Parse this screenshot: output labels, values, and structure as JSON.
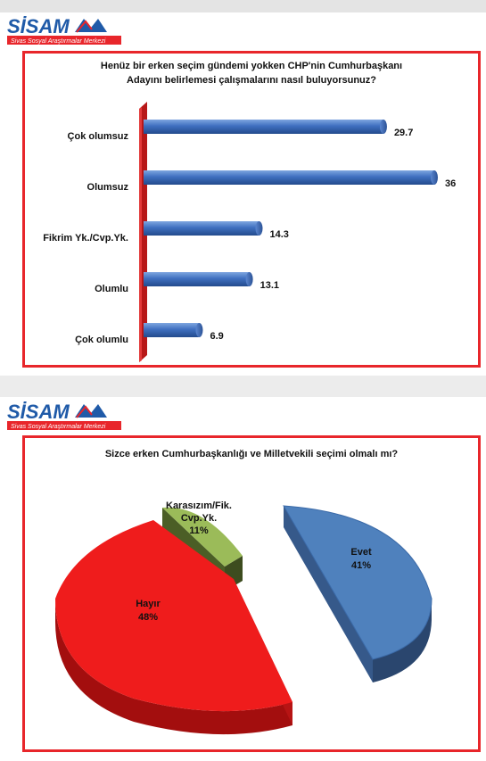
{
  "logo": {
    "brand": "SİSAM",
    "subtitle": "Sivas Sosyal Araştırmalar Merkezi"
  },
  "chart_data": [
    {
      "type": "bar",
      "orientation": "horizontal",
      "title_line1": "Henüz bir erken seçim gündemi yokken CHP'nin Cumhurbaşkanı",
      "title_line2": "Adayını belirlemesi çalışmalarını nasıl buluyorsunuz?",
      "categories": [
        "Çok olumsuz",
        "Olumsuz",
        "Fikrim Yk./Cvp.Yk.",
        "Olumlu",
        "Çok olumlu"
      ],
      "values": [
        29.7,
        36,
        14.3,
        13.1,
        6.9
      ],
      "value_labels": [
        "29.7",
        "36",
        "14.3",
        "13.1",
        "6.9"
      ],
      "xlim": [
        0,
        36
      ],
      "bar_color": "#3f6fc0",
      "axis_wall_color": "#cc1f1f",
      "grid": false,
      "legend": "none"
    },
    {
      "type": "pie",
      "style": "3d-exploded",
      "title": "Sizce erken  Cumhurbaşkanlığı ve Milletvekili seçimi olmalı mı?",
      "slices": [
        {
          "label": "Evet",
          "percent_label": "41%",
          "value": 41,
          "color": "#4f81bd"
        },
        {
          "label": "Hayır",
          "percent_label": "48%",
          "value": 48,
          "color": "#ef1c1c"
        },
        {
          "label_line1": "Karasızım/Fik.",
          "label_line2": "Cvp.Yk.",
          "percent_label": "11%",
          "value": 11,
          "color": "#9bbb59"
        }
      ],
      "legend": "none"
    }
  ]
}
